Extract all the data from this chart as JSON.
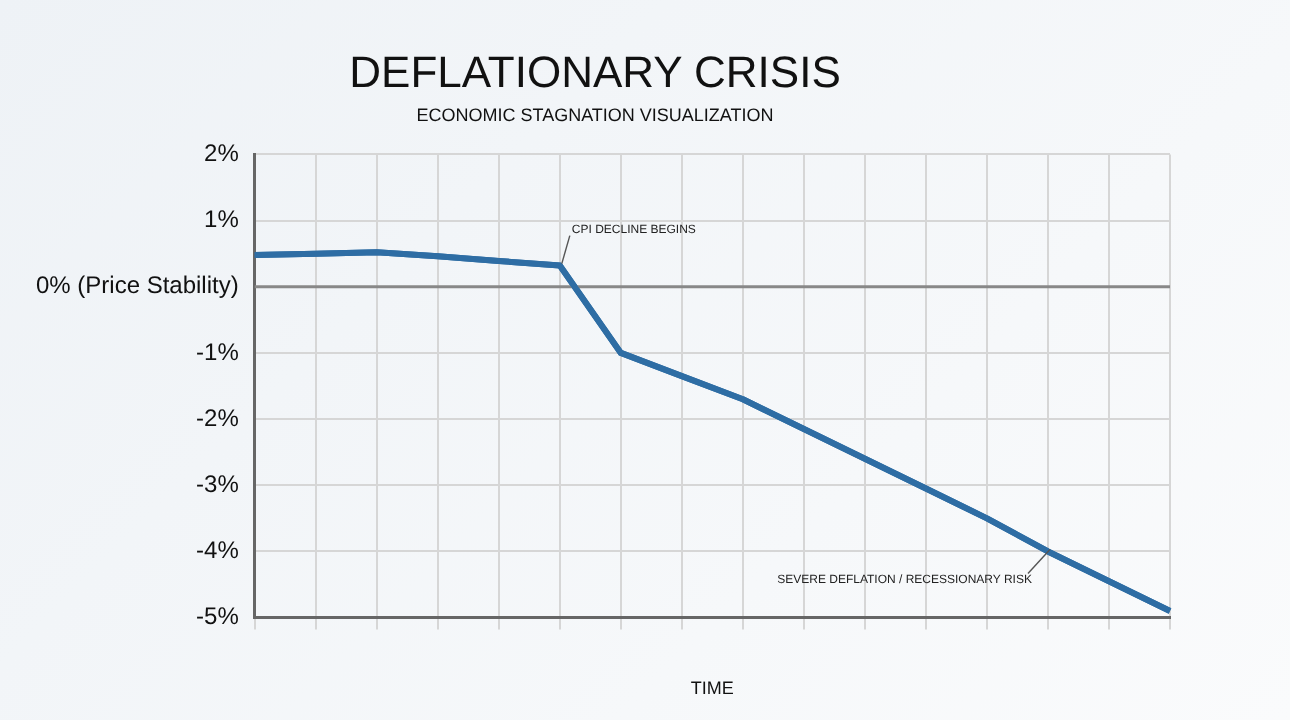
{
  "chart_data": {
    "type": "line",
    "title": "DEFLATIONARY CRISIS",
    "subtitle": "ECONOMIC STAGNATION VISUALIZATION",
    "xlabel": "TIME",
    "categories": [
      null,
      null,
      null,
      null,
      null,
      null,
      null,
      null,
      null,
      null,
      null,
      null,
      null,
      null,
      null,
      null
    ],
    "series": [
      {
        "color": "#2e6da4",
        "values": [
          0.48,
          0.5,
          0.52,
          0.46,
          0.39,
          0.32,
          -1.0,
          -1.35,
          -1.7,
          -2.15,
          -2.6,
          -3.05,
          -3.5,
          -4.0,
          -4.45,
          -4.9
        ]
      }
    ],
    "ylim": [
      -5,
      2
    ],
    "yticks": [
      {
        "value": 2,
        "label": "2%"
      },
      {
        "value": 1,
        "label": "1%"
      },
      {
        "value": 0,
        "label": "0% (Price Stability)"
      },
      {
        "value": -1,
        "label": "-1%"
      },
      {
        "value": -2,
        "label": "-2%"
      },
      {
        "value": -3,
        "label": "-3%"
      },
      {
        "value": -4,
        "label": "-4%"
      },
      {
        "value": -5,
        "label": "-5%"
      }
    ],
    "ref_lines": [
      {
        "axis": "y",
        "value": 0,
        "color": "#888888"
      }
    ],
    "annotations": [
      "CPI DECLINE BEGINS",
      "SEVERE DEFLATION / RECESSIONARY RISK"
    ],
    "grid": true,
    "legend": false,
    "marker": "none",
    "line_style": "solid"
  }
}
